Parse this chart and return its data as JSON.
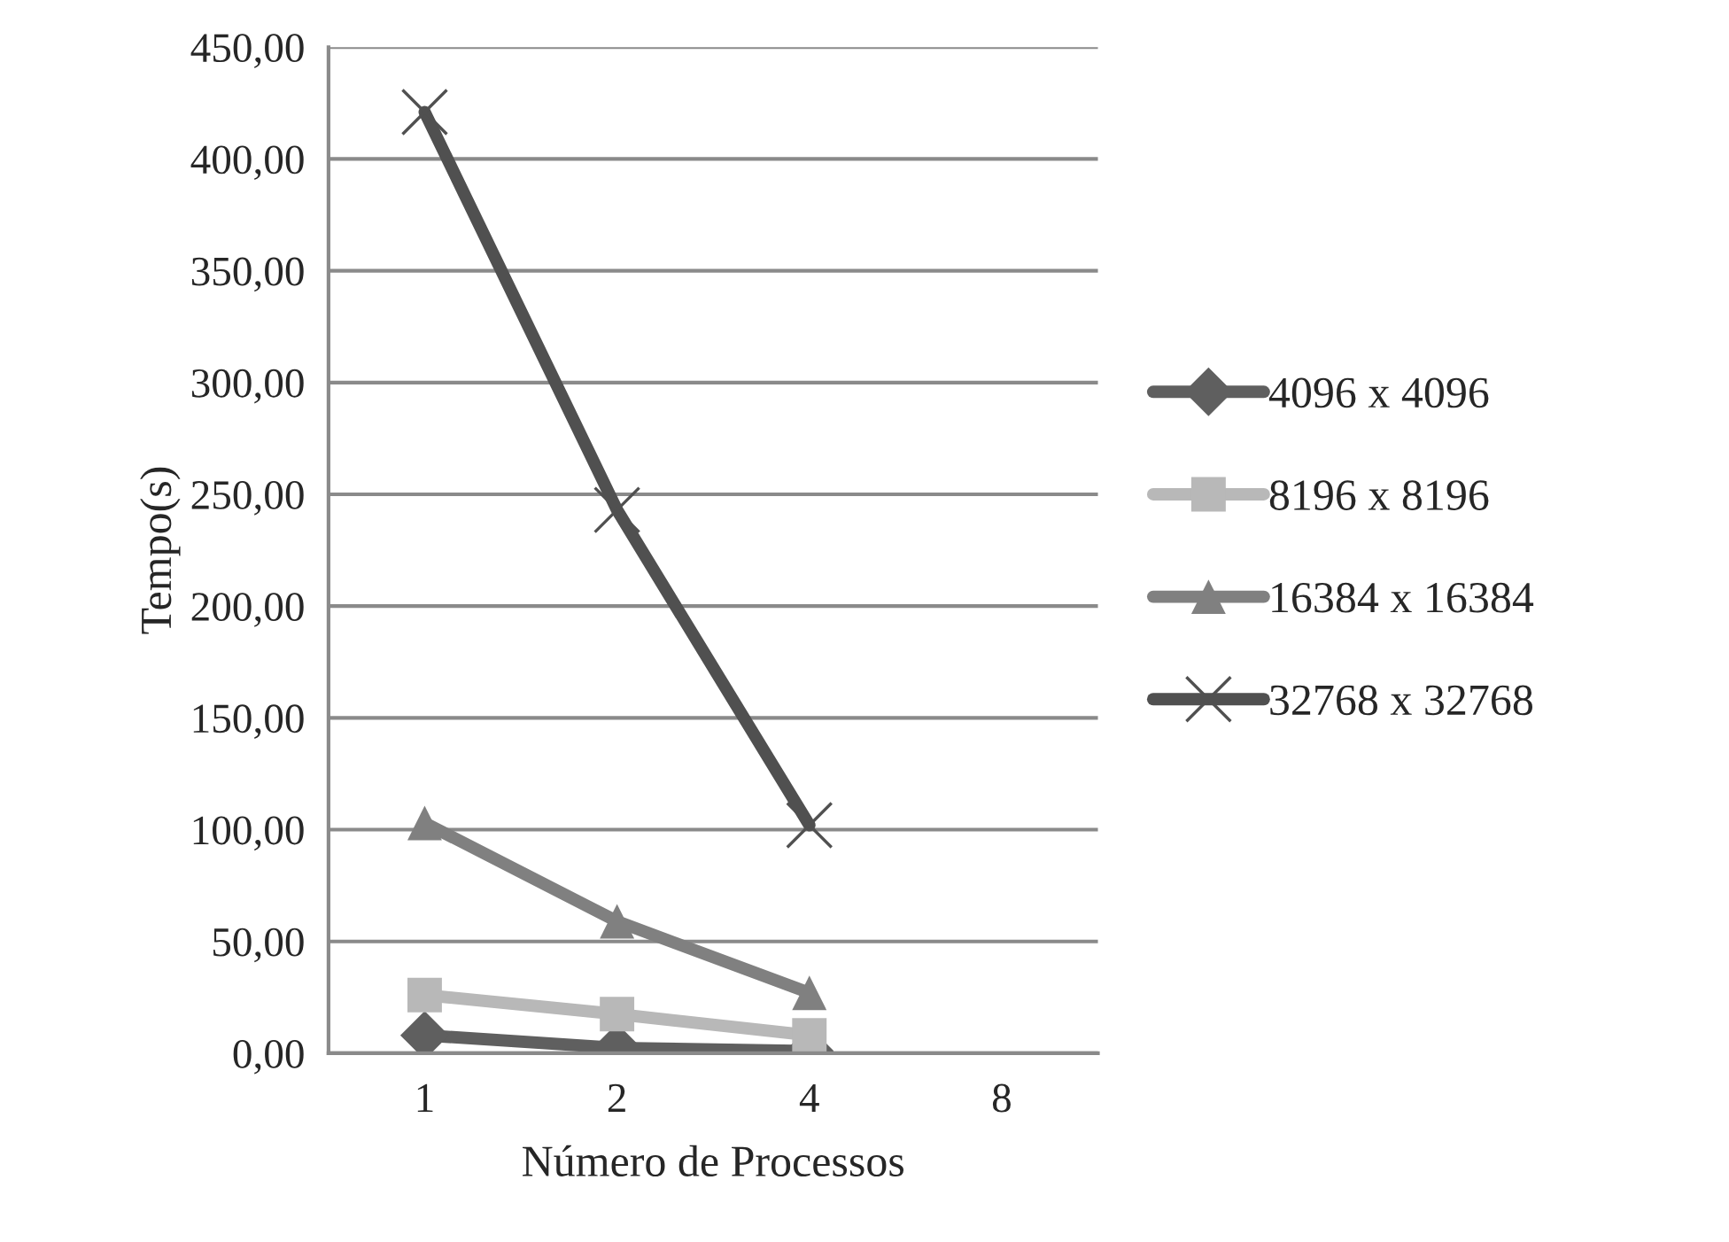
{
  "chart_data": {
    "type": "line",
    "xlabel": "Número de Processos",
    "ylabel": "Tempo(s)",
    "categories": [
      "1",
      "2",
      "4",
      "8"
    ],
    "series": [
      {
        "name": "4096 x 4096",
        "color": "#5f5f5f",
        "marker": "diamond",
        "values": [
          8,
          2.4,
          1,
          null
        ]
      },
      {
        "name": "8196 x 8196",
        "color": "#b8b8b8",
        "marker": "square",
        "values": [
          26,
          17.5,
          8,
          null
        ]
      },
      {
        "name": "16384 x 16384",
        "color": "#808080",
        "marker": "triangle",
        "values": [
          103,
          59,
          27,
          null
        ]
      },
      {
        "name": "32768 x 32768",
        "color": "#505050",
        "marker": "cross",
        "values": [
          421,
          243,
          102,
          null
        ]
      }
    ],
    "ylim": [
      0,
      450
    ],
    "yticks": [
      {
        "value": 0,
        "label": "0,00"
      },
      {
        "value": 50,
        "label": "50,00"
      },
      {
        "value": 100,
        "label": "100,00"
      },
      {
        "value": 150,
        "label": "150,00"
      },
      {
        "value": 200,
        "label": "200,00"
      },
      {
        "value": 250,
        "label": "250,00"
      },
      {
        "value": 300,
        "label": "300,00"
      },
      {
        "value": 350,
        "label": "350,00"
      },
      {
        "value": 400,
        "label": "400,00"
      },
      {
        "value": 450,
        "label": "450,00"
      }
    ],
    "grid": "y",
    "legend": "right"
  }
}
